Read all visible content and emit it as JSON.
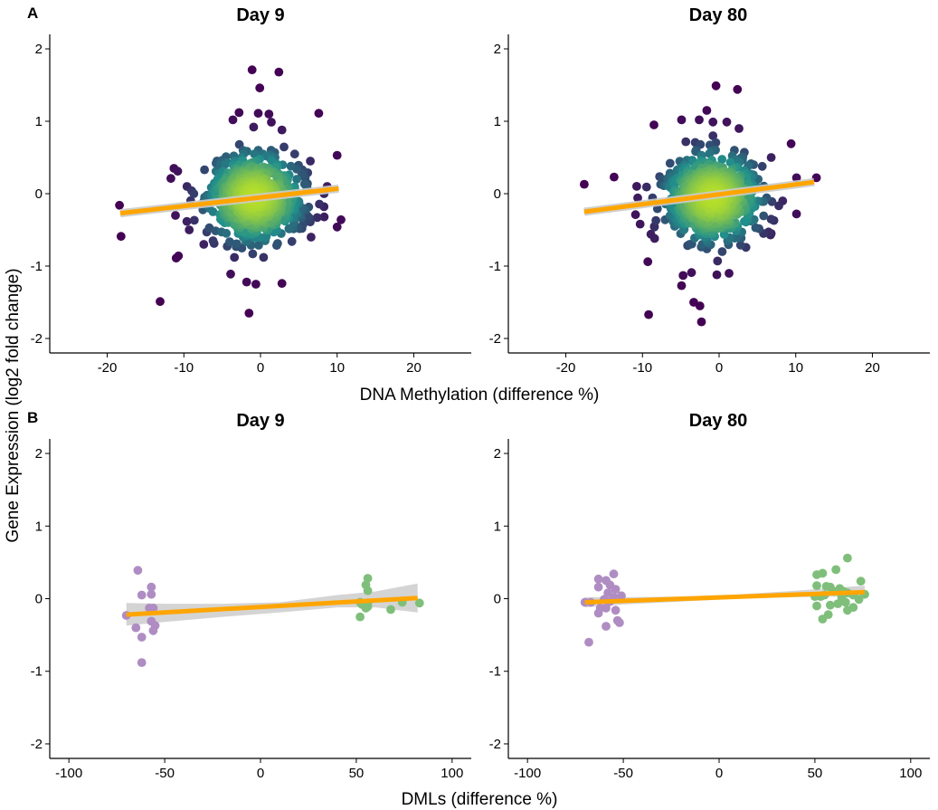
{
  "figure": {
    "tag_a": "A",
    "tag_b": "B",
    "ylabel": "Gene Expression (log2 fold change)",
    "xlabel_a": "DNA Methylation (difference %)",
    "xlabel_b": "DMLs (difference %)"
  },
  "colors": {
    "fit_line": "#FFA500",
    "confidence_band": "#CCCCCC",
    "density_low": "#440154",
    "density_mid": "#21908C",
    "density_high": "#B5DE2B",
    "hypo_points": "#AF8DC3",
    "hyper_points": "#7FBF7B"
  },
  "chart_data": [
    {
      "type": "scatter",
      "panel": "A",
      "title": "Day 9",
      "xlabel": "DNA Methylation (difference %)",
      "ylabel": "Gene Expression (log2 fold change)",
      "xlim": [
        -27.5,
        27.5
      ],
      "ylim": [
        -2.2,
        2.2
      ],
      "xticks": [
        -20,
        -10,
        0,
        10,
        20
      ],
      "yticks": [
        -2,
        -1,
        0,
        1,
        2
      ],
      "grid": false,
      "color_encoding": "point density (viridis)",
      "points": [
        [
          -1.1,
          1.71
        ],
        [
          2.4,
          1.68
        ],
        [
          -0.1,
          1.46
        ],
        [
          7.6,
          1.11
        ],
        [
          -3.6,
          1.02
        ],
        [
          -0.3,
          1.11
        ],
        [
          1.1,
          1.1
        ],
        [
          -2.8,
          1.12
        ],
        [
          -0.9,
          0.92
        ],
        [
          2.8,
          0.88
        ],
        [
          10.0,
          0.53
        ],
        [
          -4.5,
          0.51
        ],
        [
          -5.8,
          0.42
        ],
        [
          6.5,
          0.45
        ],
        [
          -7.3,
          0.33
        ],
        [
          -11.3,
          0.35
        ],
        [
          -10.8,
          0.31
        ],
        [
          -11.7,
          0.21
        ],
        [
          -9.6,
          0.1
        ],
        [
          -8.7,
          0.0
        ],
        [
          -11.1,
          -0.3
        ],
        [
          -9.3,
          -0.5
        ],
        [
          -7.4,
          -0.7
        ],
        [
          -6.2,
          -0.65
        ],
        [
          -11.0,
          -0.89
        ],
        [
          -10.7,
          -0.86
        ],
        [
          -18.4,
          -0.16
        ],
        [
          -18.2,
          -0.59
        ],
        [
          -13.1,
          -1.49
        ],
        [
          -3.4,
          -0.88
        ],
        [
          -3.9,
          -1.11
        ],
        [
          -1.8,
          -1.22
        ],
        [
          -0.6,
          -1.25
        ],
        [
          2.8,
          -1.24
        ],
        [
          0.4,
          -0.88
        ],
        [
          -1.5,
          -1.65
        ],
        [
          4.1,
          -0.66
        ],
        [
          5.4,
          -0.48
        ],
        [
          6.6,
          -0.6
        ],
        [
          8.7,
          0.1
        ],
        [
          10.5,
          -0.36
        ],
        [
          10.0,
          -0.46
        ],
        [
          7.4,
          -0.33
        ],
        [
          8.3,
          0.0
        ],
        [
          5.6,
          0.3
        ],
        [
          -4.2,
          -0.4
        ],
        [
          -5.0,
          -0.1
        ],
        [
          -3.0,
          0.3
        ],
        [
          -2.2,
          0.55
        ],
        [
          1.9,
          0.5
        ],
        [
          3.1,
          0.25
        ],
        [
          -5.6,
          0.2
        ],
        [
          4.3,
          -0.2
        ],
        [
          2.7,
          -0.55
        ],
        [
          -2.9,
          -0.55
        ],
        [
          -0.3,
          0.6
        ],
        [
          0.6,
          -0.65
        ],
        [
          -3.4,
          0.1
        ],
        [
          3.6,
          0.1
        ],
        [
          -1.9,
          -0.3
        ],
        [
          1.6,
          0.3
        ],
        [
          -1.4,
          0.1
        ],
        [
          0.9,
          -0.2
        ],
        [
          0.0,
          -0.05
        ],
        [
          -0.6,
          0.05
        ],
        [
          0.4,
          0.0
        ]
      ],
      "series": [
        {
          "name": "",
          "fit": {
            "x": [
              -18.3,
              10.2
            ],
            "y": [
              -0.27,
              0.07
            ]
          }
        }
      ]
    },
    {
      "type": "scatter",
      "panel": "A",
      "title": "Day 80",
      "xlabel": "DNA Methylation (difference %)",
      "ylabel": "Gene Expression (log2 fold change)",
      "xlim": [
        -27.5,
        27.5
      ],
      "ylim": [
        -2.2,
        2.2
      ],
      "xticks": [
        -20,
        -10,
        0,
        10,
        20
      ],
      "yticks": [
        -2,
        -1,
        0,
        1,
        2
      ],
      "grid": false,
      "color_encoding": "point density (viridis)",
      "points": [
        [
          -0.4,
          1.49
        ],
        [
          2.4,
          1.44
        ],
        [
          -1.6,
          1.15
        ],
        [
          -8.5,
          0.95
        ],
        [
          -4.9,
          1.02
        ],
        [
          -2.6,
          1.02
        ],
        [
          -0.8,
          0.99
        ],
        [
          1.0,
          0.99
        ],
        [
          2.6,
          0.9
        ],
        [
          9.4,
          0.69
        ],
        [
          6.8,
          0.5
        ],
        [
          12.7,
          0.22
        ],
        [
          10.1,
          0.22
        ],
        [
          10.1,
          -0.28
        ],
        [
          8.3,
          -0.1
        ],
        [
          -17.6,
          0.13
        ],
        [
          -13.7,
          0.23
        ],
        [
          -10.9,
          -0.29
        ],
        [
          -10.3,
          -0.42
        ],
        [
          -8.9,
          -0.56
        ],
        [
          -9.3,
          -0.94
        ],
        [
          -4.7,
          -1.13
        ],
        [
          -4.9,
          -1.27
        ],
        [
          -3.6,
          -1.09
        ],
        [
          -3.3,
          -1.5
        ],
        [
          -2.5,
          -1.55
        ],
        [
          -2.3,
          -1.77
        ],
        [
          -9.2,
          -1.67
        ],
        [
          -0.3,
          -1.12
        ],
        [
          1.3,
          -1.1
        ],
        [
          -0.2,
          -0.93
        ],
        [
          5.8,
          -0.55
        ],
        [
          6.7,
          -0.57
        ],
        [
          4.2,
          -0.38
        ],
        [
          2.8,
          -0.71
        ],
        [
          -5.8,
          -0.45
        ],
        [
          -6.2,
          -0.3
        ],
        [
          -6.5,
          0.1
        ],
        [
          -4.5,
          0.4
        ],
        [
          -3.0,
          0.6
        ],
        [
          2.0,
          0.6
        ],
        [
          4.5,
          0.4
        ],
        [
          5.1,
          0.2
        ],
        [
          -4.0,
          -0.3
        ],
        [
          4.3,
          -0.2
        ],
        [
          -2.2,
          -0.7
        ],
        [
          0.4,
          -0.8
        ],
        [
          -0.8,
          0.8
        ],
        [
          1.4,
          0.3
        ],
        [
          -2.6,
          0.3
        ],
        [
          -1.2,
          0.1
        ],
        [
          0.6,
          -0.3
        ],
        [
          -1.6,
          -0.4
        ],
        [
          -0.6,
          0.05
        ],
        [
          -1.1,
          -0.05
        ],
        [
          -1.3,
          -0.2
        ],
        [
          0.1,
          0.2
        ]
      ],
      "series": [
        {
          "name": "",
          "fit": {
            "x": [
              -17.6,
              12.4
            ],
            "y": [
              -0.25,
              0.16
            ]
          }
        }
      ]
    },
    {
      "type": "scatter",
      "panel": "B",
      "title": "Day 9",
      "xlabel": "DMLs (difference %)",
      "ylabel": "Gene Expression (log2 fold change)",
      "xlim": [
        -110,
        110
      ],
      "ylim": [
        -2.2,
        2.2
      ],
      "xticks": [
        -100,
        -50,
        0,
        50,
        100
      ],
      "yticks": [
        -2,
        -1,
        0,
        1,
        2
      ],
      "grid": false,
      "series": [
        {
          "name": "",
          "color": "#AF8DC3",
          "points": [
            [
              -64,
              0.39
            ],
            [
              -57,
              0.16
            ],
            [
              -62,
              0.05
            ],
            [
              -57,
              0.06
            ],
            [
              -56,
              -0.13
            ],
            [
              -58,
              -0.13
            ],
            [
              -57,
              -0.31
            ],
            [
              -55,
              -0.37
            ],
            [
              -56,
              -0.44
            ],
            [
              -70,
              -0.23
            ],
            [
              -65,
              -0.4
            ],
            [
              -62,
              -0.53
            ],
            [
              -62,
              -0.88
            ]
          ]
        },
        {
          "name": "",
          "color": "#7FBF7B",
          "points": [
            [
              56,
              0.28
            ],
            [
              55,
              0.19
            ],
            [
              56,
              0.11
            ],
            [
              52,
              -0.05
            ],
            [
              53,
              -0.08
            ],
            [
              55,
              -0.13
            ],
            [
              56,
              -0.11
            ],
            [
              52,
              -0.25
            ],
            [
              68,
              -0.15
            ],
            [
              74,
              -0.05
            ],
            [
              83,
              -0.06
            ],
            [
              56,
              -0.06
            ]
          ]
        }
      ],
      "fit": {
        "x": [
          -70,
          82
        ],
        "y": [
          -0.22,
          0.01
        ]
      },
      "band": {
        "x": [
          -70,
          -50,
          -20,
          10,
          40,
          60,
          82
        ],
        "lower": [
          -0.37,
          -0.32,
          -0.25,
          -0.19,
          -0.12,
          -0.12,
          -0.19
        ],
        "upper": [
          -0.06,
          -0.07,
          -0.07,
          -0.05,
          0.05,
          0.1,
          0.21
        ]
      }
    },
    {
      "type": "scatter",
      "panel": "B",
      "title": "Day 80",
      "xlabel": "DMLs (difference %)",
      "ylabel": "Gene Expression (log2 fold change)",
      "xlim": [
        -110,
        110
      ],
      "ylim": [
        -2.2,
        2.2
      ],
      "xticks": [
        -100,
        -50,
        0,
        50,
        100
      ],
      "yticks": [
        -2,
        -1,
        0,
        1,
        2
      ],
      "grid": false,
      "series": [
        {
          "name": "",
          "color": "#AF8DC3",
          "points": [
            [
              -55,
              0.34
            ],
            [
              -63,
              0.27
            ],
            [
              -59,
              0.25
            ],
            [
              -57,
              0.19
            ],
            [
              -63,
              0.16
            ],
            [
              -54,
              0.13
            ],
            [
              -58,
              0.08
            ],
            [
              -51,
              0.04
            ],
            [
              -55,
              0.02
            ],
            [
              -52,
              0.0
            ],
            [
              -60,
              -0.01
            ],
            [
              -57,
              -0.04
            ],
            [
              -70,
              -0.05
            ],
            [
              -67,
              -0.05
            ],
            [
              -62,
              -0.13
            ],
            [
              -59,
              -0.13
            ],
            [
              -54,
              -0.16
            ],
            [
              -63,
              -0.2
            ],
            [
              -53,
              -0.3
            ],
            [
              -52,
              -0.33
            ],
            [
              -59,
              -0.38
            ],
            [
              -68,
              -0.6
            ]
          ]
        },
        {
          "name": "",
          "color": "#7FBF7B",
          "points": [
            [
              67,
              0.56
            ],
            [
              61,
              0.4
            ],
            [
              51,
              0.33
            ],
            [
              54,
              0.35
            ],
            [
              74,
              0.24
            ],
            [
              51,
              0.18
            ],
            [
              56,
              0.17
            ],
            [
              58,
              0.16
            ],
            [
              63,
              0.14
            ],
            [
              60,
              0.1
            ],
            [
              65,
              0.1
            ],
            [
              67,
              0.08
            ],
            [
              53,
              0.03
            ],
            [
              50,
              0.03
            ],
            [
              55,
              0.05
            ],
            [
              70,
              0.05
            ],
            [
              76,
              0.06
            ],
            [
              64,
              0.02
            ],
            [
              73,
              -0.01
            ],
            [
              66,
              -0.05
            ],
            [
              62,
              -0.07
            ],
            [
              58,
              -0.09
            ],
            [
              51,
              -0.1
            ],
            [
              70,
              -0.12
            ],
            [
              67,
              -0.16
            ],
            [
              57,
              -0.22
            ],
            [
              54,
              -0.28
            ]
          ]
        }
      ],
      "fit": {
        "x": [
          -70,
          76
        ],
        "y": [
          -0.05,
          0.09
        ]
      },
      "band": {
        "x": [
          -70,
          -50,
          -20,
          10,
          40,
          60,
          76
        ],
        "lower": [
          -0.12,
          -0.08,
          -0.04,
          0.0,
          0.02,
          0.03,
          0.0
        ],
        "upper": [
          0.02,
          0.02,
          0.03,
          0.06,
          0.11,
          0.15,
          0.18
        ]
      }
    }
  ]
}
